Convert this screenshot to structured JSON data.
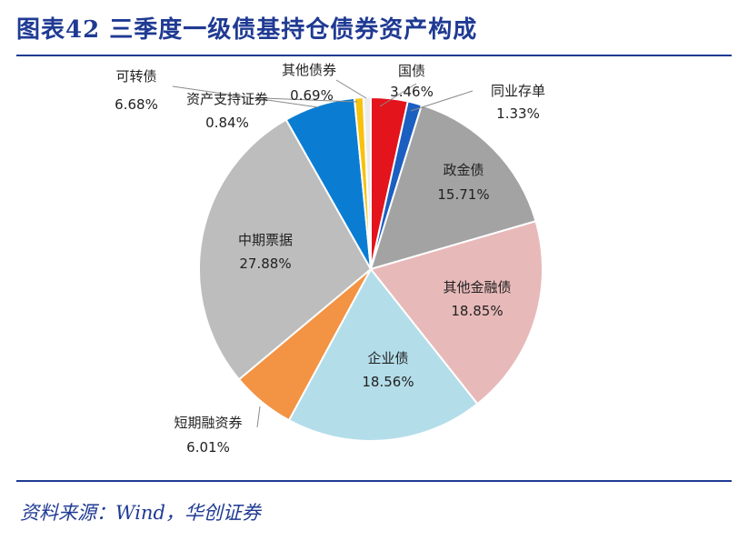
{
  "header": {
    "title": "图表42  三季度一级债基持仓债券资产构成"
  },
  "footer": {
    "source": "资料来源：Wind，华创证券"
  },
  "chart_data": {
    "type": "pie",
    "title": "",
    "start_angle_deg": 0,
    "direction": "clockwise",
    "slices": [
      {
        "name": "国债",
        "pct_label": "3.46%",
        "value": 3.46,
        "color": "#e3141c"
      },
      {
        "name": "同业存单",
        "pct_label": "1.33%",
        "value": 1.33,
        "color": "#1b5fc1"
      },
      {
        "name": "政金债",
        "pct_label": "15.71%",
        "value": 15.71,
        "color": "#a3a3a3"
      },
      {
        "name": "其他金融债",
        "pct_label": "18.85%",
        "value": 18.85,
        "color": "#e8b9b9"
      },
      {
        "name": "企业债",
        "pct_label": "18.56%",
        "value": 18.56,
        "color": "#b3dde9"
      },
      {
        "name": "短期融资券",
        "pct_label": "6.01%",
        "value": 6.01,
        "color": "#f39344"
      },
      {
        "name": "中期票据",
        "pct_label": "27.88%",
        "value": 27.88,
        "color": "#bdbdbd"
      },
      {
        "name": "可转债",
        "pct_label": "6.68%",
        "value": 6.68,
        "color": "#0a7dd3"
      },
      {
        "name": "资产支持证券",
        "pct_label": "0.84%",
        "value": 0.84,
        "color": "#f7c20e"
      },
      {
        "name": "其他债券",
        "pct_label": "0.69%",
        "value": 0.69,
        "color": "#ececec"
      }
    ]
  }
}
